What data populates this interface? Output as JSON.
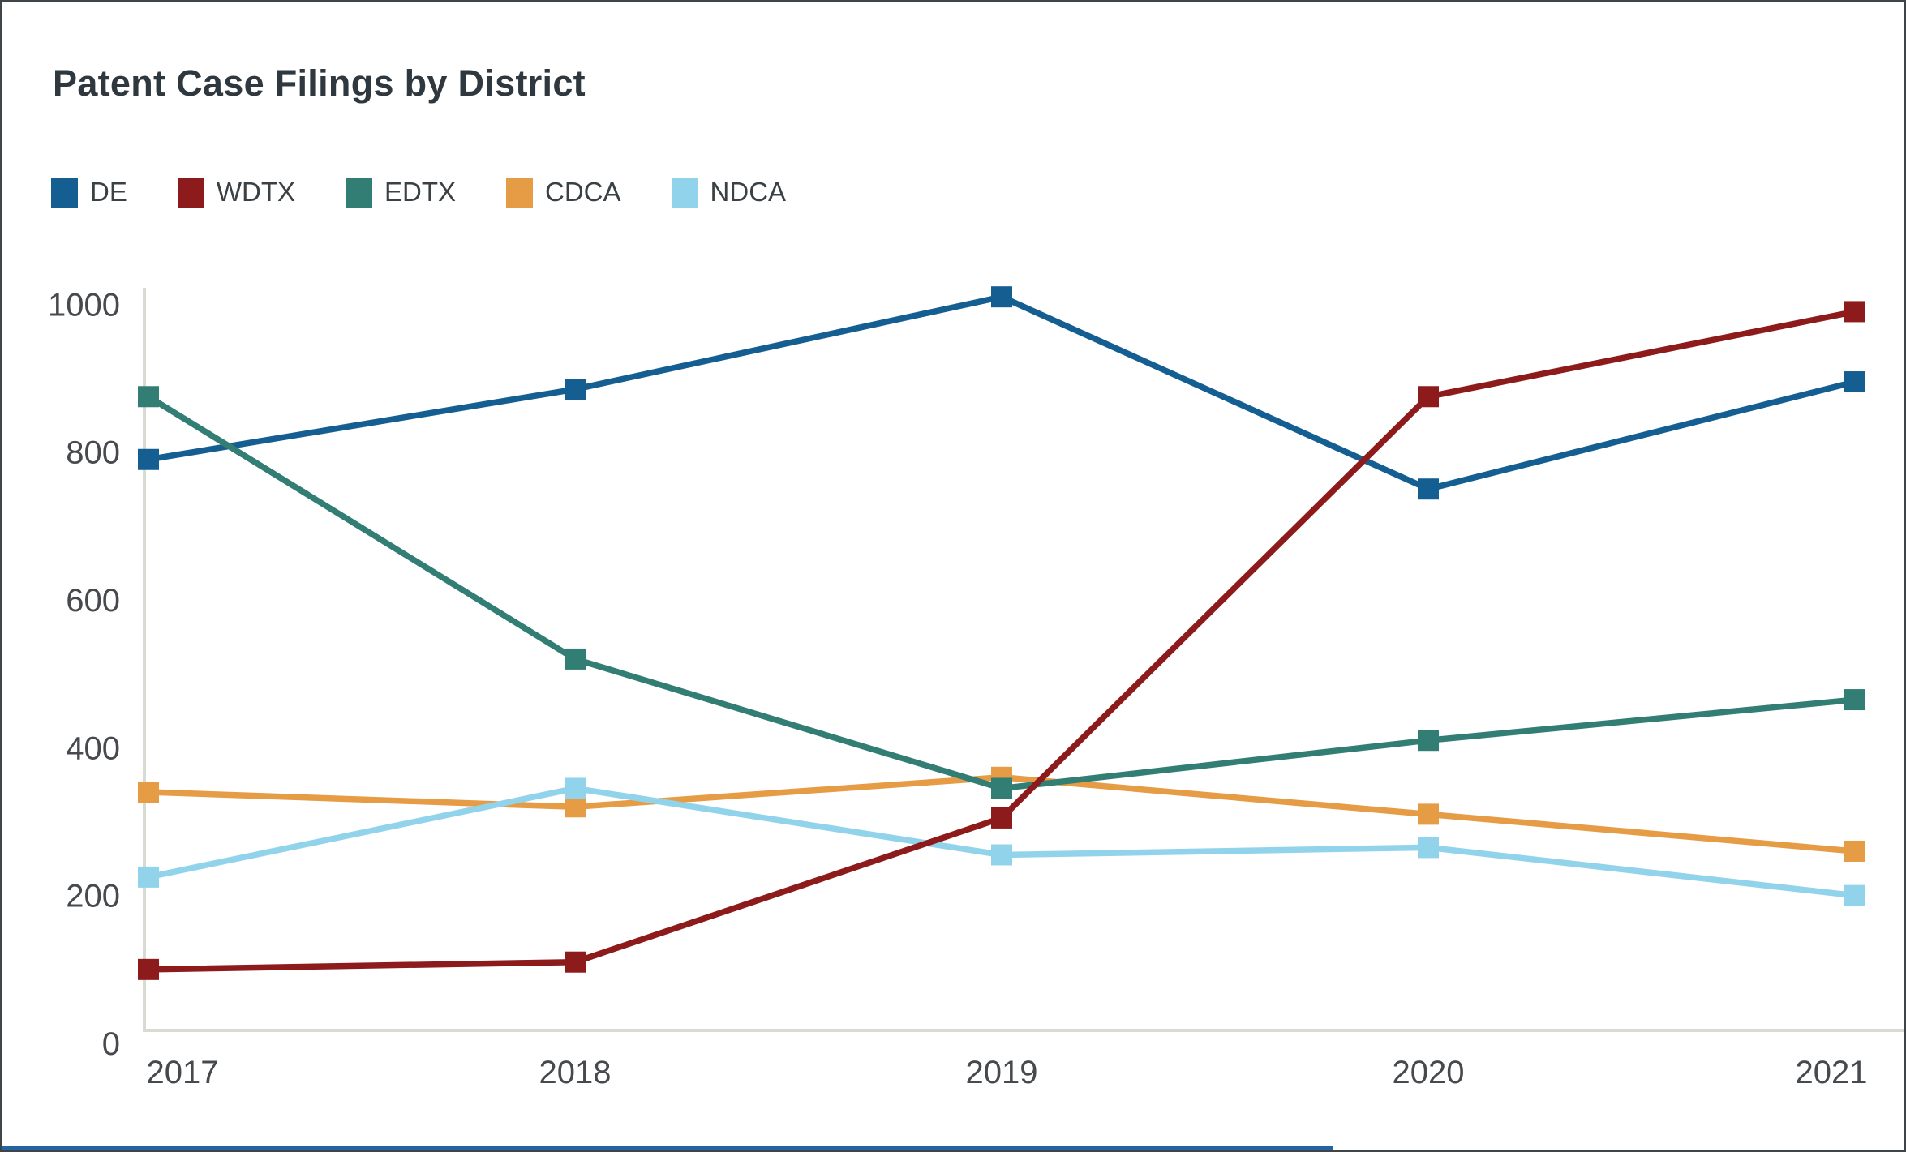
{
  "page": {
    "title": "Patent Case Filings by District"
  },
  "chart_data": {
    "type": "line",
    "title": "Patent Case Filings by District",
    "xlabel": "",
    "ylabel": "",
    "categories": [
      "2017",
      "2018",
      "2019",
      "2020",
      "2021"
    ],
    "series": [
      {
        "name": "DE",
        "color": "#145E92",
        "values": [
          790,
          885,
          1010,
          750,
          895
        ]
      },
      {
        "name": "WDTX",
        "color": "#8D1B1B",
        "values": [
          100,
          110,
          305,
          875,
          990
        ]
      },
      {
        "name": "EDTX",
        "color": "#327E74",
        "values": [
          875,
          520,
          345,
          410,
          465
        ]
      },
      {
        "name": "CDCA",
        "color": "#E69B45",
        "values": [
          340,
          320,
          360,
          310,
          260
        ]
      },
      {
        "name": "NDCA",
        "color": "#92D3EC",
        "values": [
          225,
          345,
          255,
          265,
          200
        ]
      }
    ],
    "ylim": [
      0,
      1000
    ],
    "yticks": [
      0,
      200,
      400,
      600,
      800,
      1000
    ],
    "grid": false,
    "marker": "square",
    "legend_position": "top-left",
    "draw_order": [
      "DE",
      "CDCA",
      "NDCA",
      "EDTX",
      "WDTX"
    ]
  },
  "colors": {
    "background": "#FFFFFF",
    "border": "#3F4448",
    "axis_line": "#D8DBD2",
    "tick_text": "#46494D",
    "title_text": "#2F383E",
    "legend_text": "#3A4145",
    "bottom_strip": "#2464A5"
  }
}
